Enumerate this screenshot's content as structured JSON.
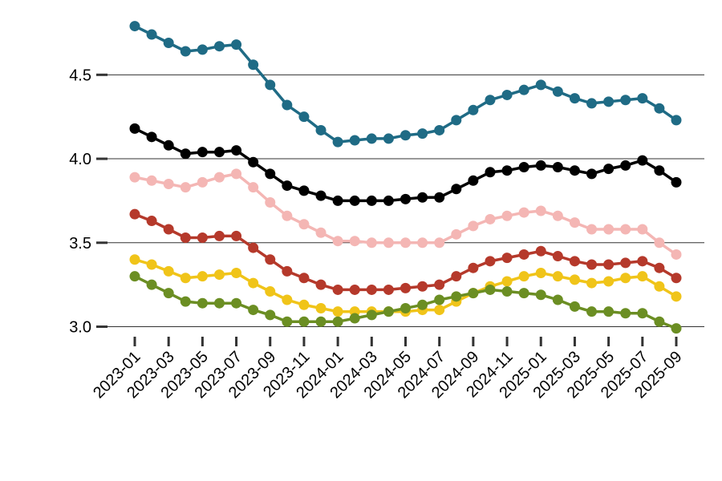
{
  "chart_data": {
    "type": "line",
    "title": "",
    "xlabel": "",
    "ylabel": "",
    "ylim": [
      2.95,
      4.85
    ],
    "yticks": [
      3.0,
      3.5,
      4.0,
      4.5
    ],
    "ytick_labels": [
      "3.0",
      "3.5",
      "4.0",
      "4.5"
    ],
    "x": [
      "2023-01",
      "2023-02",
      "2023-03",
      "2023-04",
      "2023-05",
      "2023-06",
      "2023-07",
      "2023-08",
      "2023-09",
      "2023-10",
      "2023-11",
      "2023-12",
      "2024-01",
      "2024-02",
      "2024-03",
      "2024-04",
      "2024-05",
      "2024-06",
      "2024-07",
      "2024-08",
      "2024-09",
      "2024-10",
      "2024-11",
      "2024-12",
      "2025-01",
      "2025-02",
      "2025-03",
      "2025-04",
      "2025-05",
      "2025-06",
      "2025-07",
      "2025-08",
      "2025-09"
    ],
    "xtick_labels": [
      "2023-01",
      "2023-03",
      "2023-05",
      "2023-07",
      "2023-09",
      "2023-11",
      "2024-01",
      "2024-03",
      "2024-05",
      "2024-07",
      "2024-09",
      "2024-11",
      "2025-01",
      "2025-03",
      "2025-05",
      "2025-07",
      "2025-09"
    ],
    "grid": "horizontal",
    "legend": "none",
    "series": [
      {
        "color": "#1f6b85",
        "values": [
          4.79,
          4.74,
          4.69,
          4.64,
          4.65,
          4.67,
          4.68,
          4.56,
          4.44,
          4.32,
          4.25,
          4.17,
          4.1,
          4.11,
          4.12,
          4.12,
          4.14,
          4.15,
          4.17,
          4.23,
          4.29,
          4.35,
          4.38,
          4.41,
          4.44,
          4.4,
          4.36,
          4.33,
          4.34,
          4.35,
          4.36,
          4.3,
          4.23
        ]
      },
      {
        "color": "#000000",
        "values": [
          4.18,
          4.13,
          4.08,
          4.03,
          4.04,
          4.04,
          4.05,
          3.98,
          3.91,
          3.84,
          3.81,
          3.78,
          3.75,
          3.75,
          3.75,
          3.75,
          3.76,
          3.77,
          3.77,
          3.82,
          3.87,
          3.92,
          3.93,
          3.95,
          3.96,
          3.95,
          3.93,
          3.91,
          3.94,
          3.96,
          3.99,
          3.93,
          3.86
        ]
      },
      {
        "color": "#f4b6b4",
        "values": [
          3.89,
          3.87,
          3.85,
          3.83,
          3.86,
          3.89,
          3.91,
          3.83,
          3.74,
          3.66,
          3.61,
          3.56,
          3.51,
          3.51,
          3.5,
          3.5,
          3.5,
          3.5,
          3.5,
          3.55,
          3.6,
          3.64,
          3.66,
          3.68,
          3.69,
          3.66,
          3.62,
          3.58,
          3.58,
          3.58,
          3.58,
          3.5,
          3.43
        ]
      },
      {
        "color": "#b5392b",
        "values": [
          3.67,
          3.63,
          3.58,
          3.53,
          3.53,
          3.54,
          3.54,
          3.47,
          3.4,
          3.33,
          3.29,
          3.25,
          3.22,
          3.22,
          3.22,
          3.22,
          3.23,
          3.24,
          3.25,
          3.3,
          3.35,
          3.39,
          3.41,
          3.43,
          3.45,
          3.42,
          3.39,
          3.37,
          3.37,
          3.38,
          3.39,
          3.35,
          3.29
        ]
      },
      {
        "color": "#f0c419",
        "values": [
          3.4,
          3.37,
          3.33,
          3.29,
          3.3,
          3.31,
          3.32,
          3.26,
          3.21,
          3.16,
          3.13,
          3.11,
          3.09,
          3.09,
          3.09,
          3.09,
          3.09,
          3.1,
          3.1,
          3.15,
          3.2,
          3.24,
          3.27,
          3.3,
          3.32,
          3.3,
          3.28,
          3.26,
          3.27,
          3.29,
          3.3,
          3.24,
          3.18
        ]
      },
      {
        "color": "#6b8e23",
        "values": [
          3.3,
          3.25,
          3.2,
          3.15,
          3.14,
          3.14,
          3.14,
          3.1,
          3.07,
          3.03,
          3.03,
          3.03,
          3.03,
          3.05,
          3.07,
          3.09,
          3.11,
          3.13,
          3.16,
          3.18,
          3.2,
          3.22,
          3.21,
          3.2,
          3.19,
          3.16,
          3.12,
          3.09,
          3.09,
          3.08,
          3.08,
          3.03,
          2.99
        ]
      }
    ]
  }
}
